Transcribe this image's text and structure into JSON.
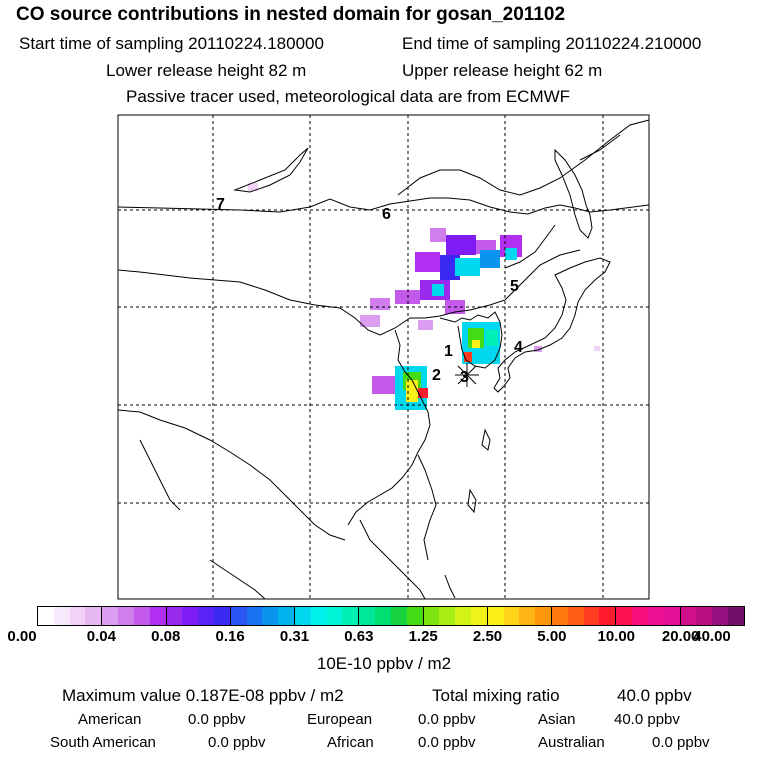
{
  "header": {
    "title": "CO  source contributions in nested domain for gosan_201102",
    "start_time": "Start time of sampling 20110224.180000",
    "end_time": "End time of sampling 20110224.210000",
    "lower_height": "Lower release height   82 m",
    "upper_height": "Upper release height   62 m",
    "note": "Passive tracer used, meteorological data are from ECMWF"
  },
  "map": {
    "region_labels": [
      "1",
      "2",
      "3",
      "4",
      "5",
      "6",
      "7"
    ]
  },
  "colorbar": {
    "ticks": [
      "0.00",
      "0.04",
      "0.08",
      "0.16",
      "0.31",
      "0.63",
      "1.25",
      "2.50",
      "5.00",
      "10.00",
      "20.00",
      "40.00"
    ],
    "unit": "10E-10 ppbv / m2",
    "colors": [
      [
        "#ffffff",
        "#f8e8fb",
        "#f1d3f7",
        "#e8b8f3"
      ],
      [
        "#dc9ef0",
        "#d07ded",
        "#c35aeb",
        "#b22ef0"
      ],
      [
        "#9a2aee",
        "#7f1cf6",
        "#5a22f5",
        "#3c28f3"
      ],
      [
        "#2a55f2",
        "#1873f0",
        "#0a94ee",
        "#00b3ee"
      ],
      [
        "#00d8f0",
        "#00f0ec",
        "#00f5d8",
        "#00f0b5"
      ],
      [
        "#00e898",
        "#00e070",
        "#15d23d",
        "#43dc14"
      ],
      [
        "#7ce510",
        "#a8ed14",
        "#d3f218",
        "#f0f21a"
      ],
      [
        "#fcf01a",
        "#ffd318",
        "#ffb414",
        "#ff960e"
      ],
      [
        "#ff7a10",
        "#ff5c14",
        "#ff3c20",
        "#ff1c2c"
      ],
      [
        "#ff1050",
        "#f8107e",
        "#ee1096",
        "#e11096"
      ],
      [
        "#d0108a",
        "#b80e84",
        "#961080",
        "#70106a"
      ]
    ]
  },
  "summary": {
    "max_label": "Maximum value  0.187E-08 ppbv / m2",
    "total_label": "Total mixing ratio",
    "total_value": "40.0 ppbv",
    "american_label": "American",
    "american_value": "0.0 ppbv",
    "european_label": "European",
    "european_value": "0.0 ppbv",
    "asian_label": "Asian",
    "asian_value": "40.0 ppbv",
    "south_american_label": "South American",
    "south_american_value": "0.0 ppbv",
    "african_label": "African",
    "african_value": "0.0 ppbv",
    "australian_label": "Australian",
    "australian_value": "0.0 ppbv"
  }
}
